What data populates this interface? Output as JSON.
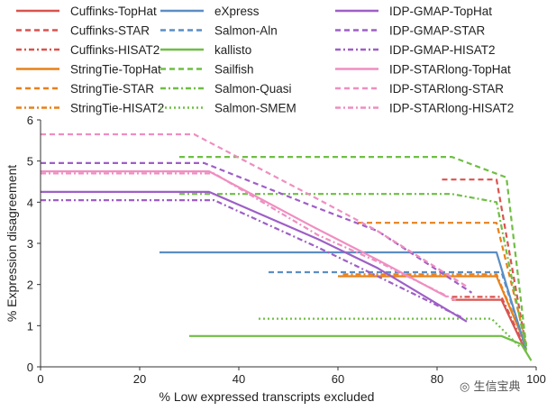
{
  "chart_data": {
    "type": "line",
    "title": "",
    "xlabel": "% Low expressed transcripts excluded",
    "ylabel": "% Expression disagreement",
    "xlim": [
      0,
      100
    ],
    "ylim": [
      0,
      6
    ],
    "xticks": [
      "0",
      "20",
      "40",
      "60",
      "80",
      "100"
    ],
    "yticks": [
      "0",
      "1",
      "2",
      "3",
      "4",
      "5",
      "6"
    ],
    "legend_position": "top",
    "series": [
      {
        "name": "Cuffinks-TopHat",
        "color": "#d9534f",
        "dash": "solid",
        "x": [
          83,
          93,
          98
        ],
        "y": [
          1.63,
          1.63,
          0.35
        ]
      },
      {
        "name": "Cuffinks-STAR",
        "color": "#d9534f",
        "dash": "dashed",
        "x": [
          81,
          92,
          98
        ],
        "y": [
          4.55,
          4.55,
          0.45
        ]
      },
      {
        "name": "Cuffinks-HISAT2",
        "color": "#d9534f",
        "dash": "dashdot",
        "x": [
          83,
          93,
          98
        ],
        "y": [
          1.7,
          1.7,
          0.4
        ]
      },
      {
        "name": "StringTie-TopHat",
        "color": "#e8801a",
        "dash": "solid",
        "x": [
          60,
          92,
          98
        ],
        "y": [
          2.2,
          2.2,
          0.5
        ]
      },
      {
        "name": "StringTie-STAR",
        "color": "#e8801a",
        "dash": "dashed",
        "x": [
          64,
          92,
          98
        ],
        "y": [
          3.5,
          3.5,
          0.55
        ]
      },
      {
        "name": "StringTie-HISAT2",
        "color": "#e8801a",
        "dash": "dashdot",
        "x": [
          61,
          92,
          98
        ],
        "y": [
          2.25,
          2.25,
          0.5
        ]
      },
      {
        "name": "eXpress",
        "color": "#5b8ec4",
        "dash": "solid",
        "x": [
          24,
          92,
          98
        ],
        "y": [
          2.78,
          2.78,
          0.4
        ]
      },
      {
        "name": "Salmon-Aln",
        "color": "#5b8ec4",
        "dash": "dashed",
        "x": [
          46,
          93,
          98
        ],
        "y": [
          2.3,
          2.3,
          0.42
        ]
      },
      {
        "name": "kallisto",
        "color": "#6fbe44",
        "dash": "solid",
        "x": [
          30,
          93,
          97,
          99
        ],
        "y": [
          0.75,
          0.75,
          0.55,
          0.15
        ]
      },
      {
        "name": "Sailfish",
        "color": "#6fbe44",
        "dash": "dashed",
        "x": [
          28,
          83,
          94,
          98
        ],
        "y": [
          5.1,
          5.1,
          4.6,
          0.5
        ]
      },
      {
        "name": "Salmon-Quasi",
        "color": "#6fbe44",
        "dash": "dashdot",
        "x": [
          28,
          83,
          92,
          98
        ],
        "y": [
          4.2,
          4.2,
          4.0,
          0.4
        ]
      },
      {
        "name": "Salmon-SMEM",
        "color": "#6fbe44",
        "dash": "dotted",
        "x": [
          44,
          91,
          97
        ],
        "y": [
          1.17,
          1.17,
          0.45
        ]
      },
      {
        "name": "IDP-GMAP-TopHat",
        "color": "#9e5fc6",
        "dash": "solid",
        "x": [
          0,
          34,
          56,
          68,
          86
        ],
        "y": [
          4.25,
          4.25,
          3.1,
          2.4,
          1.1
        ]
      },
      {
        "name": "IDP-GMAP-STAR",
        "color": "#9e5fc6",
        "dash": "dashed",
        "x": [
          0,
          33,
          55,
          68,
          87
        ],
        "y": [
          4.95,
          4.95,
          3.9,
          3.3,
          1.8
        ]
      },
      {
        "name": "IDP-GMAP-HISAT2",
        "color": "#9e5fc6",
        "dash": "dashdot",
        "x": [
          0,
          35,
          56,
          68,
          85
        ],
        "y": [
          4.05,
          4.05,
          2.9,
          2.2,
          1.2
        ]
      },
      {
        "name": "IDP-STARlong-TopHat",
        "color": "#ef8ec0",
        "dash": "solid",
        "x": [
          0,
          34,
          55,
          68,
          82
        ],
        "y": [
          4.75,
          4.75,
          3.4,
          2.6,
          1.7
        ]
      },
      {
        "name": "IDP-STARlong-STAR",
        "color": "#ef8ec0",
        "dash": "dashed",
        "x": [
          0,
          31,
          54,
          68,
          86
        ],
        "y": [
          5.65,
          5.65,
          4.2,
          3.3,
          1.95
        ]
      },
      {
        "name": "IDP-STARlong-HISAT2",
        "color": "#ef8ec0",
        "dash": "dashdot",
        "x": [
          0,
          35,
          56,
          69,
          84
        ],
        "y": [
          4.7,
          4.7,
          3.2,
          2.5,
          1.6
        ]
      }
    ]
  },
  "watermark": {
    "icon": "wechat-icon",
    "text": "生信宝典"
  }
}
